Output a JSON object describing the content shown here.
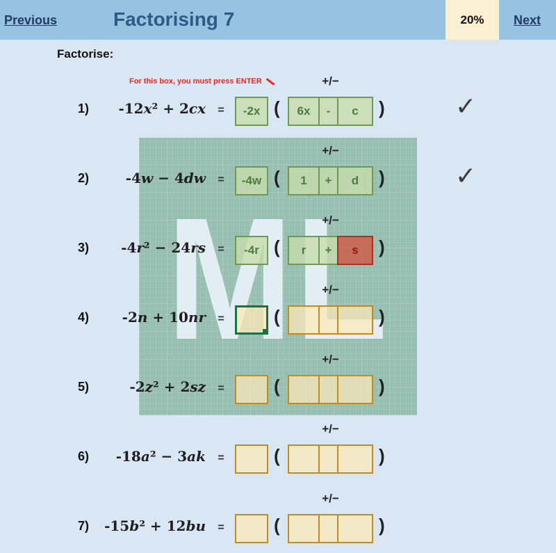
{
  "header": {
    "previous_label": "Previous",
    "title": "Factorising 7",
    "progress": "20%",
    "next_label": "Next"
  },
  "instruction_label": "Factorise:",
  "enter_hint": {
    "text": "For this box, you must press ENTER",
    "icon": "arrow-down-right-icon"
  },
  "plus_minus_label": "+/−",
  "watermark_text": "ML",
  "check_glyph": "✓",
  "colors": {
    "header_bar": "#97c2e1",
    "page_background": "#d8e7f3",
    "progress_badge": "#fbf0d2",
    "title_text": "#2b5c86",
    "nav_link": "#1e3c64",
    "hint_red": "#f2261f",
    "correct_fill": "#c8dcaa",
    "correct_border": "#6d9b52",
    "correct_text": "#4e7c3a",
    "empty_fill": "#fdeec9",
    "empty_border": "#c08c1e",
    "wrong_fill": "#c25542",
    "wrong_border": "#b32c20",
    "active_border": "#1d7044",
    "watermark_overlay": "#9cc4b4"
  },
  "rows": [
    {
      "num": "1)",
      "expr": "-12x² + 2cx",
      "eq": "=",
      "factor": "-2x",
      "t1": "6x",
      "op": "-",
      "t2": "c",
      "check": "✓"
    },
    {
      "num": "2)",
      "expr": "-4w − 4dw",
      "eq": "=",
      "factor": "-4w",
      "t1": "1",
      "op": "+",
      "t2": "d",
      "check": "✓"
    },
    {
      "num": "3)",
      "expr": "-4r² − 24rs",
      "eq": "=",
      "factor": "-4r",
      "t1": "r",
      "op": "+",
      "t2": "s",
      "check": ""
    },
    {
      "num": "4)",
      "expr": "-2n + 10nr",
      "eq": "=",
      "factor": "",
      "t1": "",
      "op": "",
      "t2": "",
      "check": ""
    },
    {
      "num": "5)",
      "expr": "-2z² + 2sz",
      "eq": "=",
      "factor": "",
      "t1": "",
      "op": "",
      "t2": "",
      "check": ""
    },
    {
      "num": "6)",
      "expr": "-18a² − 3ak",
      "eq": "=",
      "factor": "",
      "t1": "",
      "op": "",
      "t2": "",
      "check": ""
    },
    {
      "num": "7)",
      "expr": "-15b² + 12bu",
      "eq": "=",
      "factor": "",
      "t1": "",
      "op": "",
      "t2": "",
      "check": ""
    }
  ]
}
